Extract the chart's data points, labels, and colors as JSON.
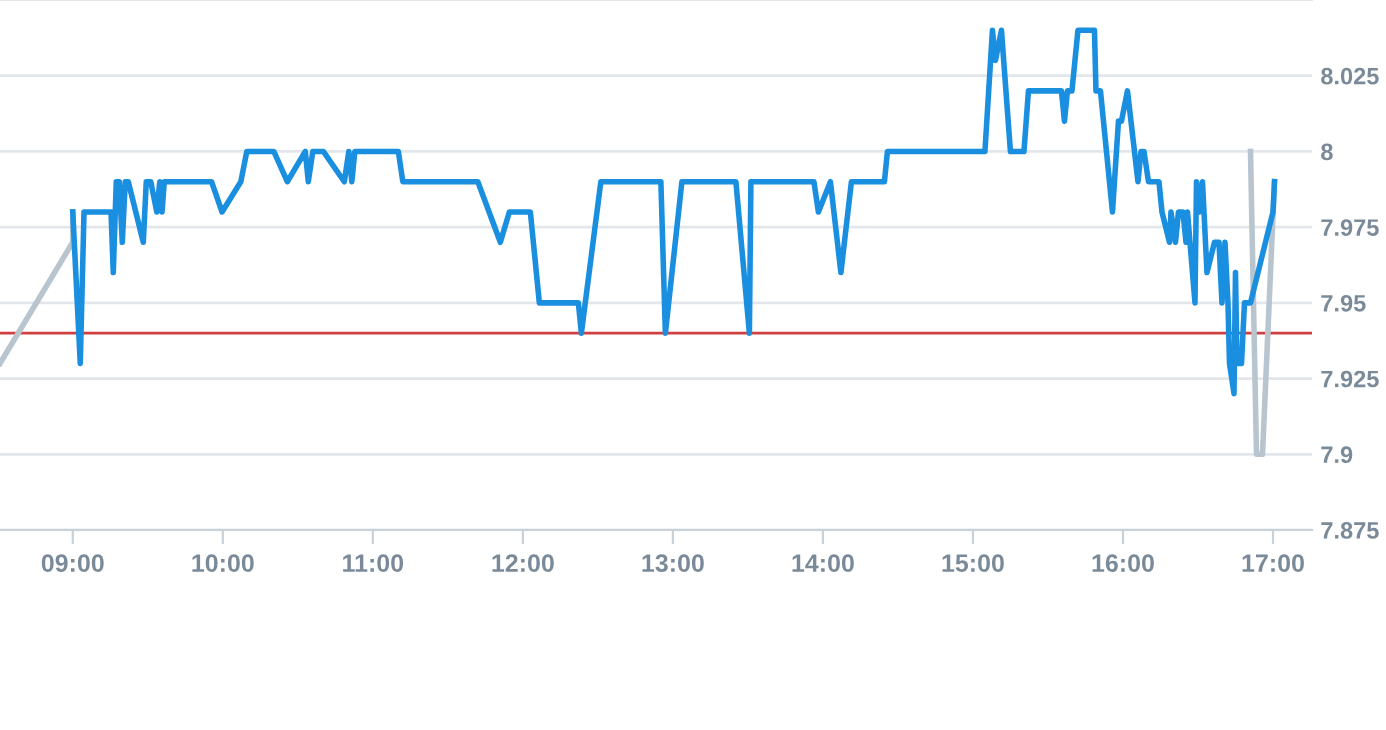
{
  "chart_data": {
    "type": "line",
    "xlim": [
      8.515,
      17.26
    ],
    "ylim": [
      7.875,
      8.05
    ],
    "xticks": [
      {
        "value": 9,
        "label": "09:00"
      },
      {
        "value": 10,
        "label": "10:00"
      },
      {
        "value": 11,
        "label": "11:00"
      },
      {
        "value": 12,
        "label": "12:00"
      },
      {
        "value": 13,
        "label": "13:00"
      },
      {
        "value": 14,
        "label": "14:00"
      },
      {
        "value": 15,
        "label": "15:00"
      },
      {
        "value": 16,
        "label": "16:00"
      },
      {
        "value": 17,
        "label": "17:00"
      }
    ],
    "yticks": [
      7.875,
      7.9,
      7.925,
      7.95,
      7.975,
      8,
      8.025
    ],
    "grid": "y",
    "legend": false,
    "marker": "none",
    "line_style": "solid",
    "ref_lines": [
      {
        "axis": "y",
        "value": 7.94,
        "color": "#d04040"
      }
    ],
    "series": [
      {
        "color": "#b8c4ce",
        "x": [
          8.515,
          9.0,
          9.0,
          9.01,
          16.85,
          16.89,
          16.93,
          17.01
        ],
        "values": [
          7.93,
          7.97,
          7.98,
          null,
          8.0,
          7.9,
          7.9,
          7.99
        ]
      },
      {
        "color": "#1a8fe0",
        "x": [
          9.0,
          9.05,
          9.075,
          9.255,
          9.27,
          9.29,
          9.31,
          9.33,
          9.35,
          9.37,
          9.47,
          9.49,
          9.52,
          9.56,
          9.58,
          9.595,
          9.61,
          9.925,
          9.995,
          10.12,
          10.16,
          10.34,
          10.43,
          10.55,
          10.57,
          10.6,
          10.67,
          10.81,
          10.84,
          10.86,
          10.88,
          11.17,
          11.2,
          11.7,
          11.85,
          11.91,
          12.05,
          12.11,
          12.37,
          12.39,
          12.52,
          12.92,
          12.95,
          13.06,
          13.42,
          13.51,
          13.52,
          13.94,
          13.97,
          14.05,
          14.12,
          14.19,
          14.41,
          14.43,
          15.08,
          15.13,
          15.15,
          15.19,
          15.25,
          15.34,
          15.37,
          15.59,
          15.61,
          15.63,
          15.66,
          15.7,
          15.81,
          15.82,
          15.85,
          15.93,
          15.97,
          15.99,
          16.03,
          16.1,
          16.12,
          16.14,
          16.17,
          16.24,
          16.26,
          16.31,
          16.32,
          16.35,
          16.37,
          16.4,
          16.42,
          16.43,
          16.48,
          16.49,
          16.51,
          16.53,
          16.56,
          16.61,
          16.64,
          16.66,
          16.68,
          16.7,
          16.71,
          16.74,
          16.75,
          16.76,
          16.79,
          16.81,
          16.85,
          17.0,
          17.01
        ],
        "values": [
          7.98,
          7.93,
          7.98,
          7.98,
          7.96,
          7.99,
          7.99,
          7.97,
          7.99,
          7.99,
          7.97,
          7.99,
          7.99,
          7.98,
          7.99,
          7.98,
          7.99,
          7.99,
          7.98,
          7.99,
          8.0,
          8.0,
          7.99,
          8.0,
          7.99,
          8.0,
          8.0,
          7.99,
          8.0,
          7.99,
          8.0,
          8.0,
          7.99,
          7.99,
          7.97,
          7.98,
          7.98,
          7.95,
          7.95,
          7.94,
          7.99,
          7.99,
          7.94,
          7.99,
          7.99,
          7.94,
          7.99,
          7.99,
          7.98,
          7.99,
          7.96,
          7.99,
          7.99,
          8.0,
          8.0,
          8.04,
          8.03,
          8.04,
          8.0,
          8.0,
          8.02,
          8.02,
          8.01,
          8.02,
          8.02,
          8.04,
          8.04,
          8.02,
          8.02,
          7.98,
          8.01,
          8.01,
          8.02,
          7.99,
          8.0,
          8.0,
          7.99,
          7.99,
          7.98,
          7.97,
          7.98,
          7.97,
          7.98,
          7.98,
          7.97,
          7.98,
          7.95,
          7.99,
          7.98,
          7.99,
          7.96,
          7.97,
          7.97,
          7.95,
          7.97,
          7.95,
          7.93,
          7.92,
          7.96,
          7.93,
          7.93,
          7.95,
          7.95,
          7.98,
          7.99
        ]
      }
    ]
  }
}
